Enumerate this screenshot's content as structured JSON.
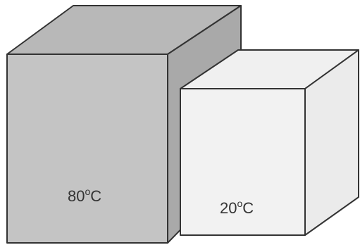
{
  "diagram": {
    "hot_block": {
      "value": "80",
      "degree": "o",
      "unit": "C",
      "front_color": "#c4c4c4",
      "top_color": "#b8b8b8",
      "side_color": "#a9a9a9"
    },
    "cold_block": {
      "value": "20",
      "degree": "o",
      "unit": "C",
      "front_color": "#f2f2f2",
      "top_color": "#f0f0f0",
      "side_color": "#ebebeb"
    },
    "edge_color": "#333333"
  }
}
